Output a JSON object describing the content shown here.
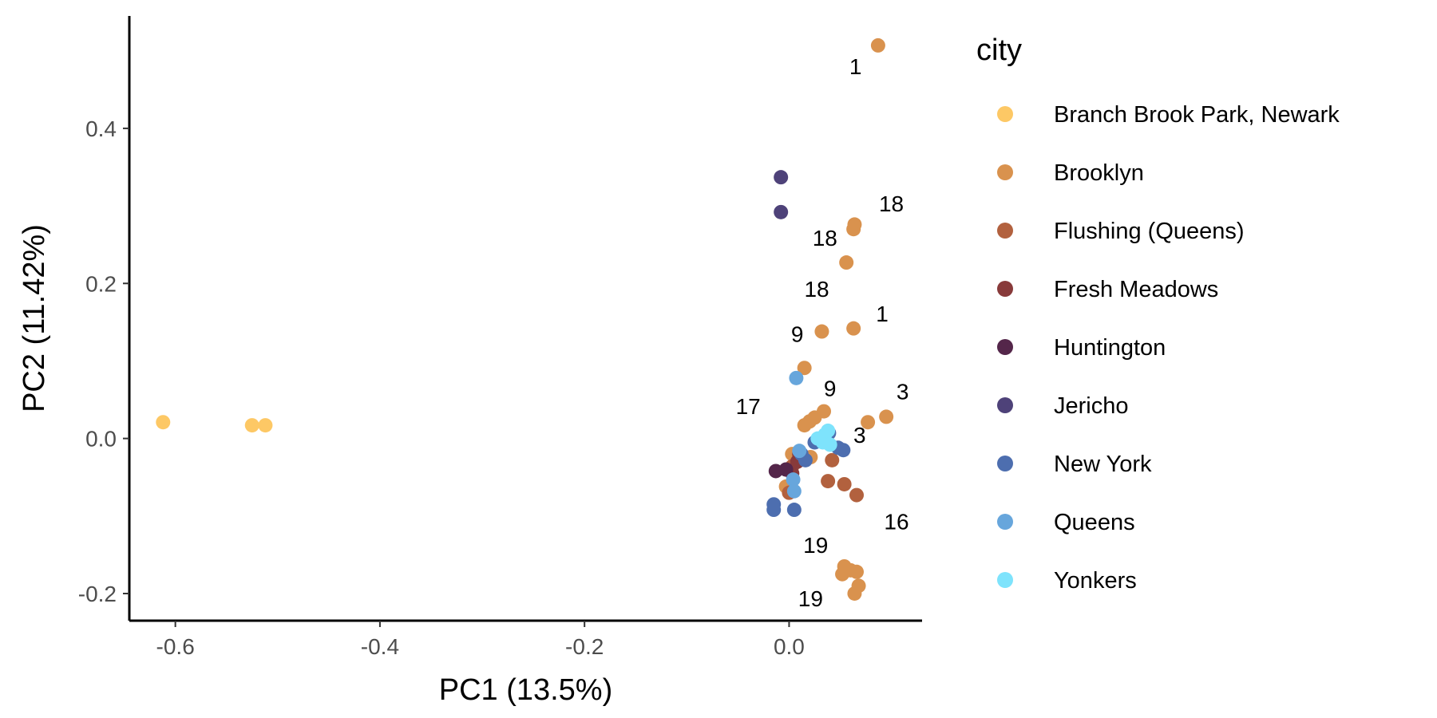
{
  "chart_data": {
    "type": "scatter",
    "xlabel": "PC1 (13.5%)",
    "ylabel": "PC2 (11.42%)",
    "xlim": [
      -0.645,
      0.13
    ],
    "ylim": [
      -0.235,
      0.545
    ],
    "xticks": [
      -0.6,
      -0.4,
      -0.2,
      0.0
    ],
    "xtick_labels": [
      "-0.6",
      "-0.4",
      "-0.2",
      "0.0"
    ],
    "yticks": [
      -0.2,
      0.0,
      0.2,
      0.4
    ],
    "ytick_labels": [
      "-0.2",
      "0.0",
      "0.2",
      "0.4"
    ],
    "grid": false,
    "legend": {
      "title": "city",
      "position": "right"
    },
    "series": [
      {
        "name": "Branch Brook Park, Newark",
        "color": "#FDC865",
        "points": [
          [
            -0.612,
            0.021
          ],
          [
            -0.525,
            0.017
          ],
          [
            -0.512,
            0.017
          ]
        ]
      },
      {
        "name": "Brooklyn",
        "color": "#D9924E",
        "points": [
          [
            0.087,
            0.507
          ],
          [
            0.064,
            0.276
          ],
          [
            0.063,
            0.27
          ],
          [
            0.056,
            0.227
          ],
          [
            0.063,
            0.142
          ],
          [
            0.032,
            0.138
          ],
          [
            0.015,
            0.091
          ],
          [
            0.095,
            0.028
          ],
          [
            0.077,
            0.021
          ],
          [
            0.034,
            0.035
          ],
          [
            0.025,
            0.027
          ],
          [
            0.02,
            0.022
          ],
          [
            0.015,
            0.017
          ],
          [
            0.021,
            -0.024
          ],
          [
            0.003,
            -0.02
          ],
          [
            -0.003,
            -0.062
          ],
          [
            0.054,
            -0.165
          ],
          [
            0.06,
            -0.17
          ],
          [
            0.066,
            -0.172
          ],
          [
            0.052,
            -0.175
          ],
          [
            0.068,
            -0.19
          ],
          [
            0.064,
            -0.2
          ]
        ]
      },
      {
        "name": "Flushing (Queens)",
        "color": "#B2613E",
        "points": [
          [
            0.042,
            -0.028
          ],
          [
            0.038,
            -0.055
          ],
          [
            0.054,
            -0.059
          ],
          [
            0.066,
            -0.073
          ],
          [
            0.003,
            -0.036
          ],
          [
            0.0,
            -0.07
          ]
        ]
      },
      {
        "name": "Fresh Meadows",
        "color": "#883A3A",
        "points": [
          [
            0.01,
            -0.02
          ],
          [
            0.008,
            -0.03
          ],
          [
            0.003,
            -0.045
          ]
        ]
      },
      {
        "name": "Huntington",
        "color": "#54264A",
        "points": [
          [
            -0.013,
            -0.042
          ],
          [
            -0.003,
            -0.04
          ]
        ]
      },
      {
        "name": "Jericho",
        "color": "#4E4279",
        "points": [
          [
            -0.008,
            0.337
          ],
          [
            -0.008,
            0.292
          ]
        ]
      },
      {
        "name": "New York",
        "color": "#4D6EAF",
        "points": [
          [
            0.039,
            0.007
          ],
          [
            0.025,
            -0.005
          ],
          [
            0.048,
            -0.012
          ],
          [
            0.053,
            -0.015
          ],
          [
            0.012,
            -0.02
          ],
          [
            0.016,
            -0.028
          ],
          [
            0.005,
            -0.092
          ],
          [
            -0.015,
            -0.085
          ],
          [
            -0.015,
            -0.092
          ]
        ]
      },
      {
        "name": "Queens",
        "color": "#67A6DC",
        "points": [
          [
            0.007,
            0.078
          ],
          [
            0.004,
            -0.053
          ],
          [
            0.005,
            -0.068
          ],
          [
            0.01,
            -0.016
          ]
        ]
      },
      {
        "name": "Yonkers",
        "color": "#7EE3FC",
        "points": [
          [
            0.035,
            0.005
          ],
          [
            0.033,
            -0.005
          ],
          [
            0.028,
            0.0
          ],
          [
            0.038,
            0.01
          ],
          [
            0.04,
            -0.008
          ]
        ]
      }
    ],
    "annotations": [
      {
        "text": "1",
        "x": 0.065,
        "y": 0.48
      },
      {
        "text": "18",
        "x": 0.1,
        "y": 0.303
      },
      {
        "text": "18",
        "x": 0.035,
        "y": 0.259
      },
      {
        "text": "18",
        "x": 0.027,
        "y": 0.193
      },
      {
        "text": "1",
        "x": 0.091,
        "y": 0.161
      },
      {
        "text": "9",
        "x": 0.008,
        "y": 0.135
      },
      {
        "text": "9",
        "x": 0.04,
        "y": 0.065
      },
      {
        "text": "17",
        "x": -0.04,
        "y": 0.042
      },
      {
        "text": "3",
        "x": 0.111,
        "y": 0.061
      },
      {
        "text": "3",
        "x": 0.069,
        "y": 0.005
      },
      {
        "text": "16",
        "x": 0.105,
        "y": -0.107
      },
      {
        "text": "19",
        "x": 0.026,
        "y": -0.137
      },
      {
        "text": "19",
        "x": 0.021,
        "y": -0.206
      }
    ]
  }
}
